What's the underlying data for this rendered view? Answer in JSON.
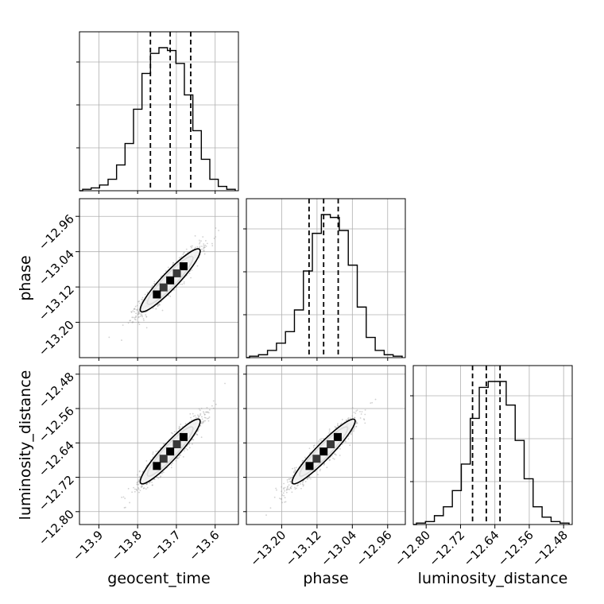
{
  "chart_data": {
    "type": "corner",
    "parameters": [
      "geocent_time",
      "phase",
      "luminosity_distance"
    ],
    "grid": true,
    "histogram_quantile_lines": "dashed",
    "axes": [
      {
        "name": "geocent_time",
        "range": [
          -13.95,
          -13.54
        ],
        "ticks": [
          -13.9,
          -13.8,
          -13.7,
          -13.6
        ],
        "tick_labels": [
          "−13.9",
          "−13.8",
          "−13.7",
          "−13.6"
        ],
        "quantiles": [
          -13.767,
          -13.716,
          -13.663
        ],
        "hist": [
          0.01,
          0.02,
          0.04,
          0.08,
          0.18,
          0.33,
          0.57,
          0.82,
          0.96,
          1.0,
          0.98,
          0.89,
          0.67,
          0.42,
          0.22,
          0.08,
          0.03,
          0.01
        ]
      },
      {
        "name": "phase",
        "range": [
          -13.28,
          -12.92
        ],
        "ticks": [
          -13.2,
          -13.12,
          -13.04,
          -12.96
        ],
        "tick_labels": [
          "−13.20",
          "−13.12",
          "−13.04",
          "−12.96"
        ],
        "quantiles": [
          -13.138,
          -13.105,
          -13.072
        ],
        "hist": [
          0.01,
          0.02,
          0.05,
          0.1,
          0.18,
          0.33,
          0.6,
          0.86,
          0.99,
          0.97,
          0.88,
          0.64,
          0.35,
          0.14,
          0.05,
          0.02,
          0.01
        ]
      },
      {
        "name": "luminosity_distance",
        "range": [
          -12.83,
          -12.46
        ],
        "ticks": [
          -12.8,
          -12.72,
          -12.64,
          -12.56,
          -12.48
        ],
        "tick_labels": [
          "−12.80",
          "−12.72",
          "−12.64",
          "−12.56",
          "−12.48"
        ],
        "quantiles": [
          -12.692,
          -12.66,
          -12.628
        ],
        "hist": [
          0.01,
          0.02,
          0.06,
          0.12,
          0.23,
          0.41,
          0.72,
          0.93,
          0.97,
          0.97,
          0.81,
          0.57,
          0.31,
          0.12,
          0.05,
          0.02,
          0.01
        ]
      }
    ],
    "pairs": [
      {
        "x": "geocent_time",
        "y": "phase",
        "center": [
          -13.716,
          -13.105
        ],
        "sd": [
          0.039,
          0.036
        ],
        "corr": 0.93
      },
      {
        "x": "geocent_time",
        "y": "luminosity_distance",
        "center": [
          -13.716,
          -12.66
        ],
        "sd": [
          0.039,
          0.038
        ],
        "corr": 0.93
      },
      {
        "x": "phase",
        "y": "luminosity_distance",
        "center": [
          -13.105,
          -12.66
        ],
        "sd": [
          0.036,
          0.038
        ],
        "corr": 0.94
      }
    ],
    "contour_levels": [
      0.12,
      0.39,
      0.68,
      0.86
    ]
  }
}
